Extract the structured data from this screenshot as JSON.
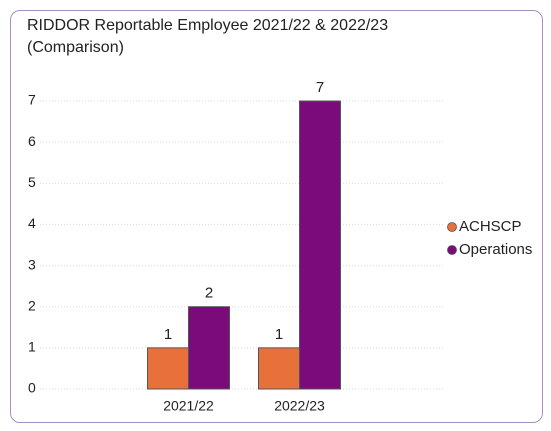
{
  "chart_data": {
    "type": "bar",
    "title": "RIDDOR Reportable Employee 2021/22 & 2022/23 (Comparison)",
    "categories": [
      "2021/22",
      "2022/23"
    ],
    "series": [
      {
        "name": "ACHSCP",
        "color": "#e8703a",
        "values": [
          1,
          1
        ]
      },
      {
        "name": "Operations",
        "color": "#7b0a7b",
        "values": [
          2,
          7
        ]
      }
    ],
    "ylim": [
      0,
      7
    ],
    "yticks": [
      0,
      1,
      2,
      3,
      4,
      5,
      6,
      7
    ],
    "grid": true,
    "legend": "right"
  }
}
